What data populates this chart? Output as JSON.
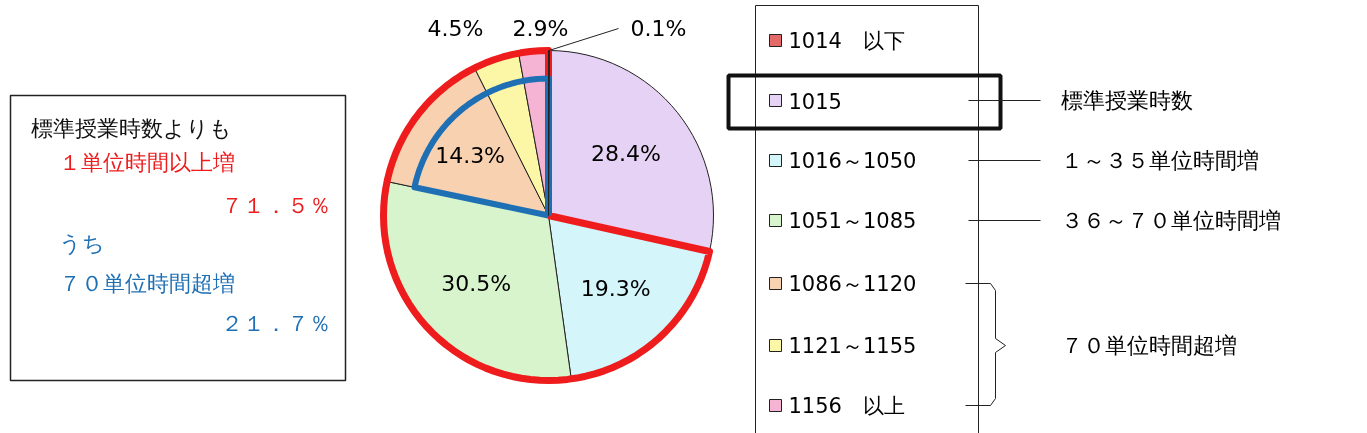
{
  "chart_data": {
    "type": "pie",
    "categories": [
      "1014　以下",
      "1015",
      "1016～1050",
      "1051～1085",
      "1086～1120",
      "1121～1155",
      "1156　以上"
    ],
    "values": [
      0.1,
      28.4,
      19.3,
      30.5,
      14.3,
      4.5,
      2.9
    ],
    "colors": [
      "#e46a6a",
      "#e6d2f4",
      "#d4f6fa",
      "#d8f4cc",
      "#f8d2b0",
      "#fcf7a6",
      "#f6b4d4"
    ],
    "value_labels": [
      "0.1%",
      "28.4%",
      "19.3%",
      "30.5%",
      "14.3%",
      "4.5%",
      "2.9%"
    ],
    "legend": "right",
    "annotations": [
      "標準授業時数よりも",
      "１単位時間以上増",
      "７１．５％",
      "うち",
      "７０単位時間超増",
      "２１．７％",
      "標準授業時数",
      "１～３５単位時間増",
      "３６～７０単位時間増",
      "７０単位時間超増"
    ]
  }
}
